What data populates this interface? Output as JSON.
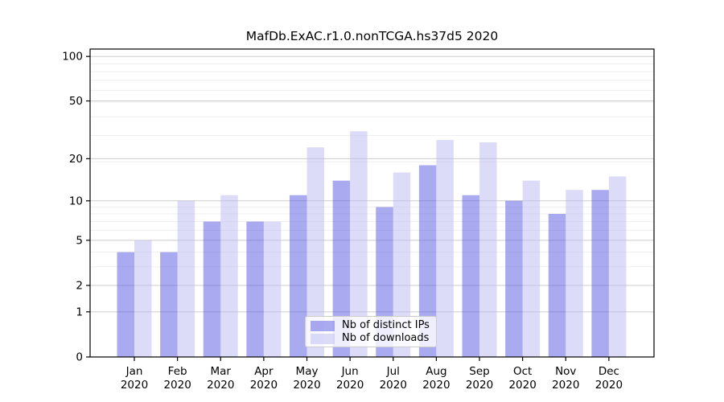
{
  "chart_data": {
    "type": "bar",
    "title": "MafDb.ExAC.r1.0.nonTCGA.hs37d5 2020",
    "categories": [
      "Jan",
      "Feb",
      "Mar",
      "Apr",
      "May",
      "Jun",
      "Jul",
      "Aug",
      "Sep",
      "Oct",
      "Nov",
      "Dec"
    ],
    "category_year": "2020",
    "series": [
      {
        "name": "Nb of distinct IPs",
        "color": "rgba(86,86,226,0.5)",
        "values": [
          4,
          4,
          7,
          7,
          11,
          14,
          9,
          18,
          11,
          10,
          8,
          12
        ]
      },
      {
        "name": "Nb of downloads",
        "color": "rgba(186,186,242,0.5)",
        "values": [
          5,
          10,
          11,
          7,
          24,
          31,
          16,
          27,
          26,
          14,
          12,
          15
        ]
      }
    ],
    "xlabel": "",
    "ylabel": "",
    "y_scale": "log1p",
    "y_ticks": [
      0,
      1,
      2,
      5,
      10,
      20,
      50,
      100
    ],
    "ylim": [
      0,
      112
    ],
    "grid": true,
    "legend_position": "lower center",
    "colors": {
      "axis": "#000000",
      "major_grid": "#cccccc",
      "minor_grid": "#efefef",
      "text": "#000000"
    }
  }
}
